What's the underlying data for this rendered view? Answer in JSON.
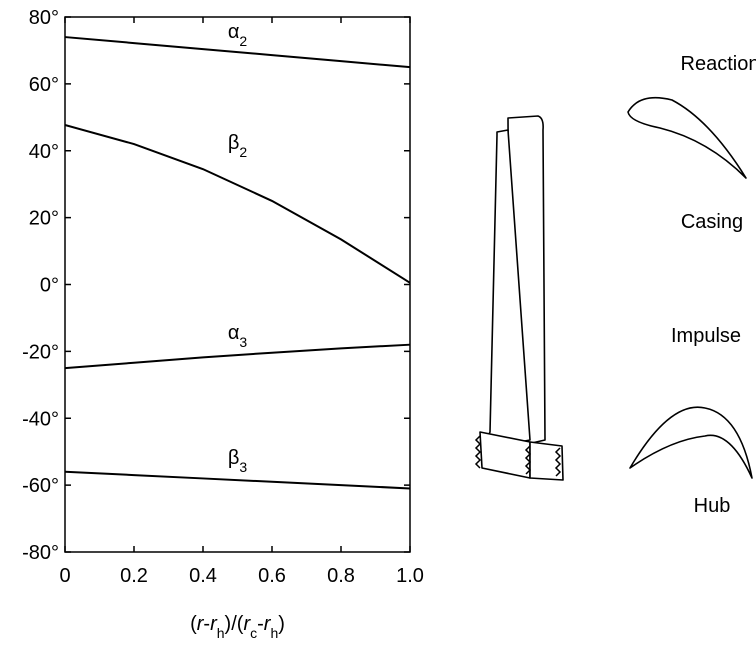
{
  "chart_data": {
    "type": "line",
    "x": [
      0,
      0.2,
      0.4,
      0.6,
      0.8,
      1.0
    ],
    "xlim": [
      0,
      1
    ],
    "ylim": [
      -80,
      80
    ],
    "xticks": [
      0,
      0.2,
      0.4,
      0.6,
      0.8,
      {
        "value": 1,
        "label": "1.0"
      }
    ],
    "yticks": [
      {
        "value": 80,
        "label": "80°"
      },
      {
        "value": 60,
        "label": "60°"
      },
      {
        "value": 40,
        "label": "40°"
      },
      {
        "value": 20,
        "label": "20°"
      },
      {
        "value": 0,
        "label": "0°"
      },
      {
        "value": -20,
        "label": "-20°"
      },
      {
        "value": -40,
        "label": "-40°"
      },
      {
        "value": -60,
        "label": "-60°"
      },
      {
        "value": -80,
        "label": "-80°"
      }
    ],
    "xlabel": [
      "(",
      "r",
      "-",
      "r",
      "h",
      ")/(",
      "r",
      "c",
      "-",
      "r",
      "h",
      ")"
    ],
    "grid": false,
    "color": "#000000",
    "series": [
      {
        "symbol": "α",
        "sub": "2",
        "values": [
          74,
          72.2,
          70.4,
          68.6,
          66.8,
          65
        ]
      },
      {
        "symbol": "β",
        "sub": "2",
        "values": [
          47.7,
          42,
          34.5,
          25,
          13.5,
          0.5
        ]
      },
      {
        "symbol": "α",
        "sub": "3",
        "values": [
          -25,
          -23.4,
          -21.8,
          -20.4,
          -19.1,
          -18
        ]
      },
      {
        "symbol": "β",
        "sub": "3",
        "values": [
          -56,
          -57,
          -58,
          -59,
          -60,
          -61
        ]
      }
    ]
  },
  "diagram": {
    "reaction": "Reaction",
    "casing": "Casing",
    "impulse": "Impulse",
    "hub": "Hub"
  }
}
